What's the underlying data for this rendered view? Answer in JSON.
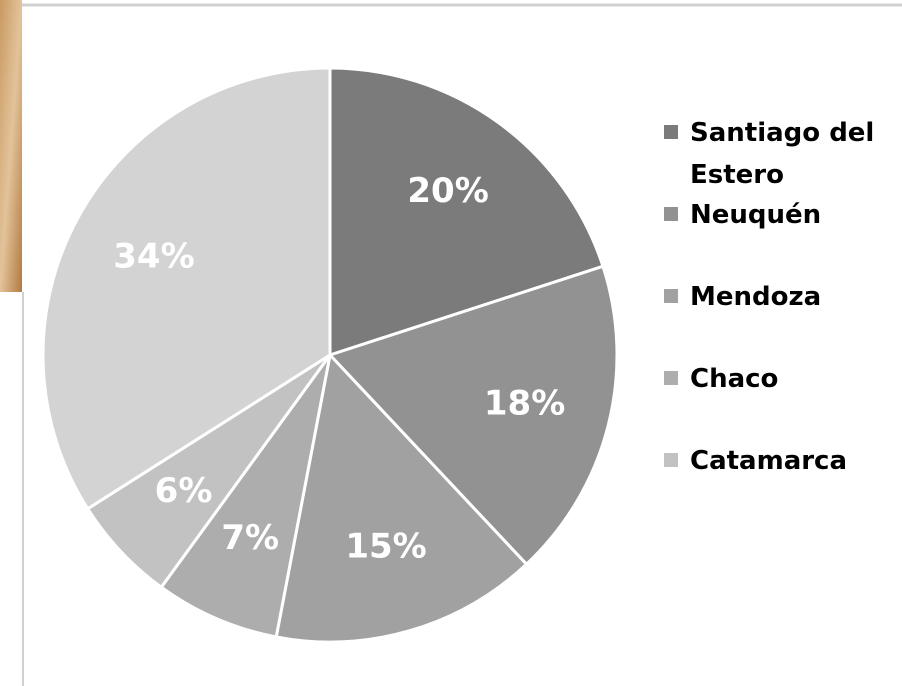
{
  "chart_data": {
    "type": "pie",
    "categories": [
      "Santiago del Estero",
      "Neuquén",
      "Mendoza",
      "Chaco",
      "Catamarca",
      null
    ],
    "values": [
      20,
      18,
      15,
      7,
      6,
      34
    ],
    "value_labels": [
      "20%",
      "18%",
      "15%",
      "7%",
      "6%",
      "34%"
    ],
    "colors": [
      "#7b7b7b",
      "#929292",
      "#a1a1a1",
      "#adadad",
      "#c2c2c2",
      "#d3d3d3"
    ]
  }
}
